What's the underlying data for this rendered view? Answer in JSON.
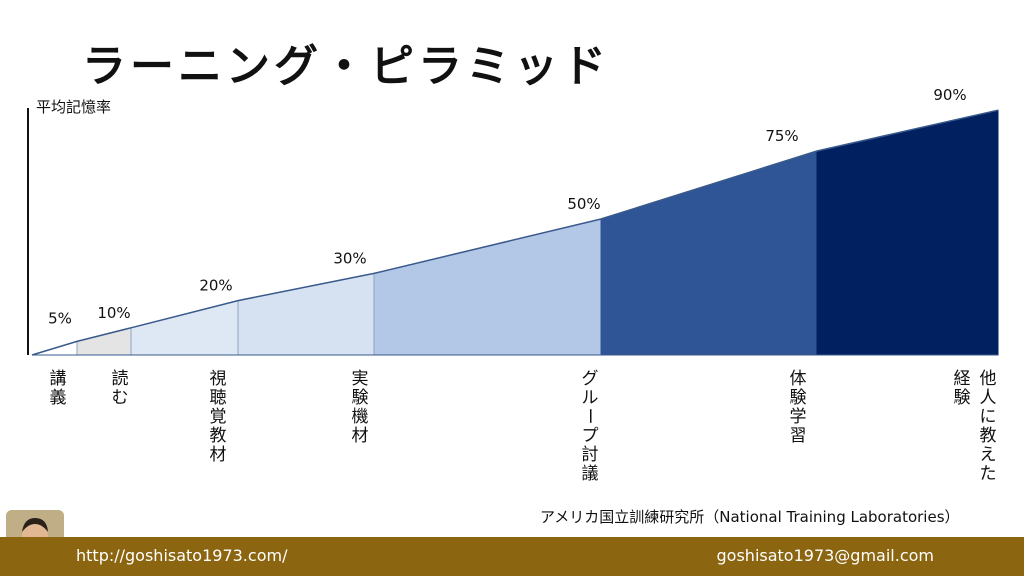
{
  "title": "ラーニング・ピラミッド",
  "ylabel": "平均記憶率",
  "source": "アメリカ国立訓練研究所（National Training Laboratories）",
  "footer": {
    "url": "http://goshisato1973.com/",
    "email": "goshisato1973@gmail.com"
  },
  "chart_data": {
    "type": "area",
    "categories": [
      "講義",
      "読む",
      "視聴覚教材",
      "実験機材",
      "グループ討議",
      "体験学習",
      "他人に教えた経験"
    ],
    "values": [
      5,
      10,
      20,
      30,
      50,
      75,
      90
    ],
    "value_labels": [
      "5%",
      "10%",
      "20%",
      "30%",
      "50%",
      "75%",
      "90%"
    ],
    "category_labels": [
      [
        "講義"
      ],
      [
        "読む"
      ],
      [
        "視聴覚教材"
      ],
      [
        "実験機材"
      ],
      [
        "グループ討議"
      ],
      [
        "体験学習"
      ],
      [
        "他人に教えた",
        "経験"
      ]
    ],
    "colors": [
      "#ffffff",
      "#e4e4e4",
      "#dde8f4",
      "#d6e2f2",
      "#b3c7e7",
      "#2f5597",
      "#002060"
    ],
    "ylabel": "平均記憶率",
    "grid": false,
    "legend": "none"
  }
}
